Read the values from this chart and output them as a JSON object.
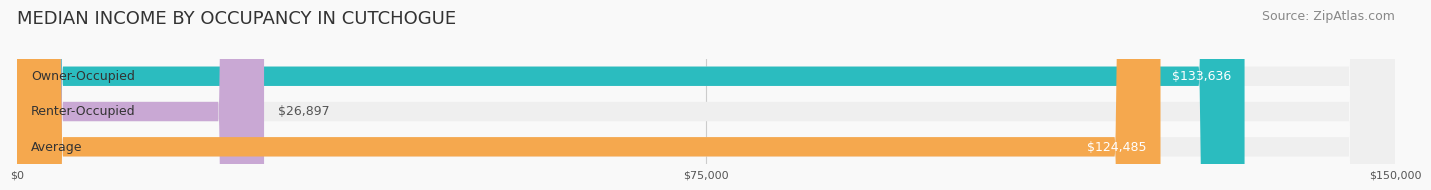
{
  "title": "MEDIAN INCOME BY OCCUPANCY IN CUTCHOGUE",
  "source": "Source: ZipAtlas.com",
  "categories": [
    "Owner-Occupied",
    "Renter-Occupied",
    "Average"
  ],
  "values": [
    133636,
    26897,
    124485
  ],
  "bar_colors": [
    "#2bbcbf",
    "#c9a8d4",
    "#f5a84e"
  ],
  "bar_bg_color": "#efefef",
  "label_colors": [
    "#ffffff",
    "#555555",
    "#ffffff"
  ],
  "value_labels": [
    "$133,636",
    "$26,897",
    "$124,485"
  ],
  "xlim": [
    0,
    150000
  ],
  "xticks": [
    0,
    75000,
    150000
  ],
  "xtick_labels": [
    "$0",
    "$75,000",
    "$150,000"
  ],
  "title_fontsize": 13,
  "source_fontsize": 9,
  "label_fontsize": 9,
  "value_fontsize": 9,
  "bar_height": 0.55,
  "background_color": "#f9f9f9",
  "grid_color": "#cccccc"
}
